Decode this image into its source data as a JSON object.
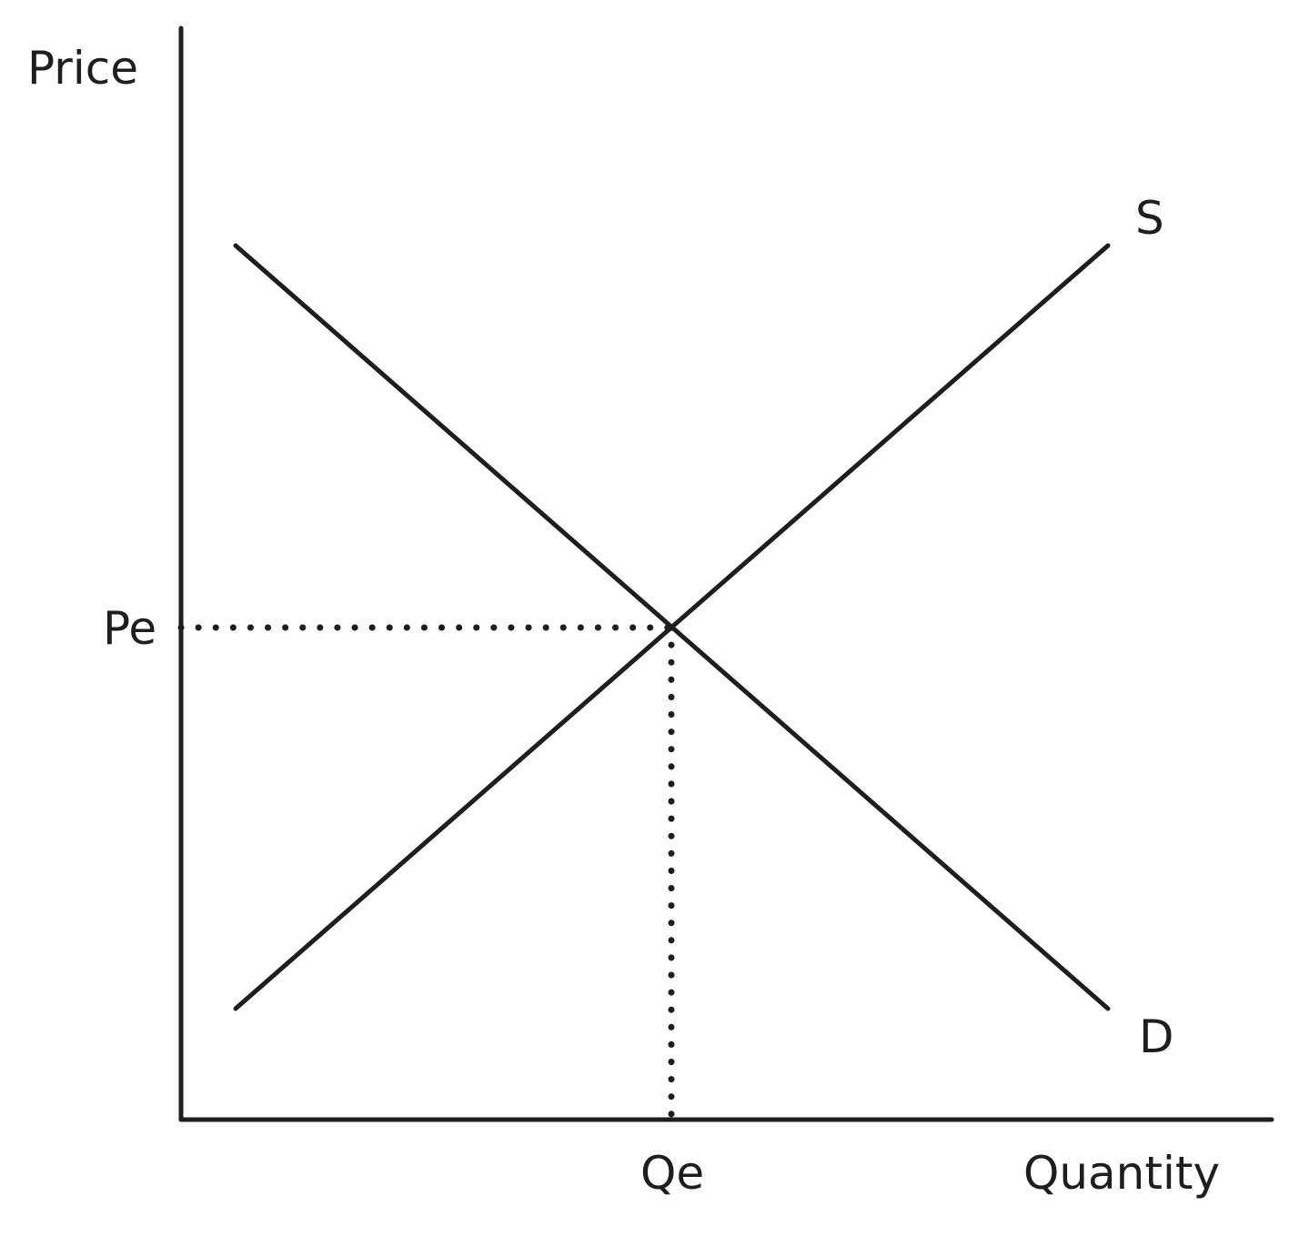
{
  "labels": {
    "y_axis": "Price",
    "x_axis": "Quantity",
    "supply": "S",
    "demand": "D",
    "equilibrium_price": "Pe",
    "equilibrium_quantity": "Qe"
  },
  "colors": {
    "ink": "#1e1e1e",
    "background": "#ffffff"
  }
}
